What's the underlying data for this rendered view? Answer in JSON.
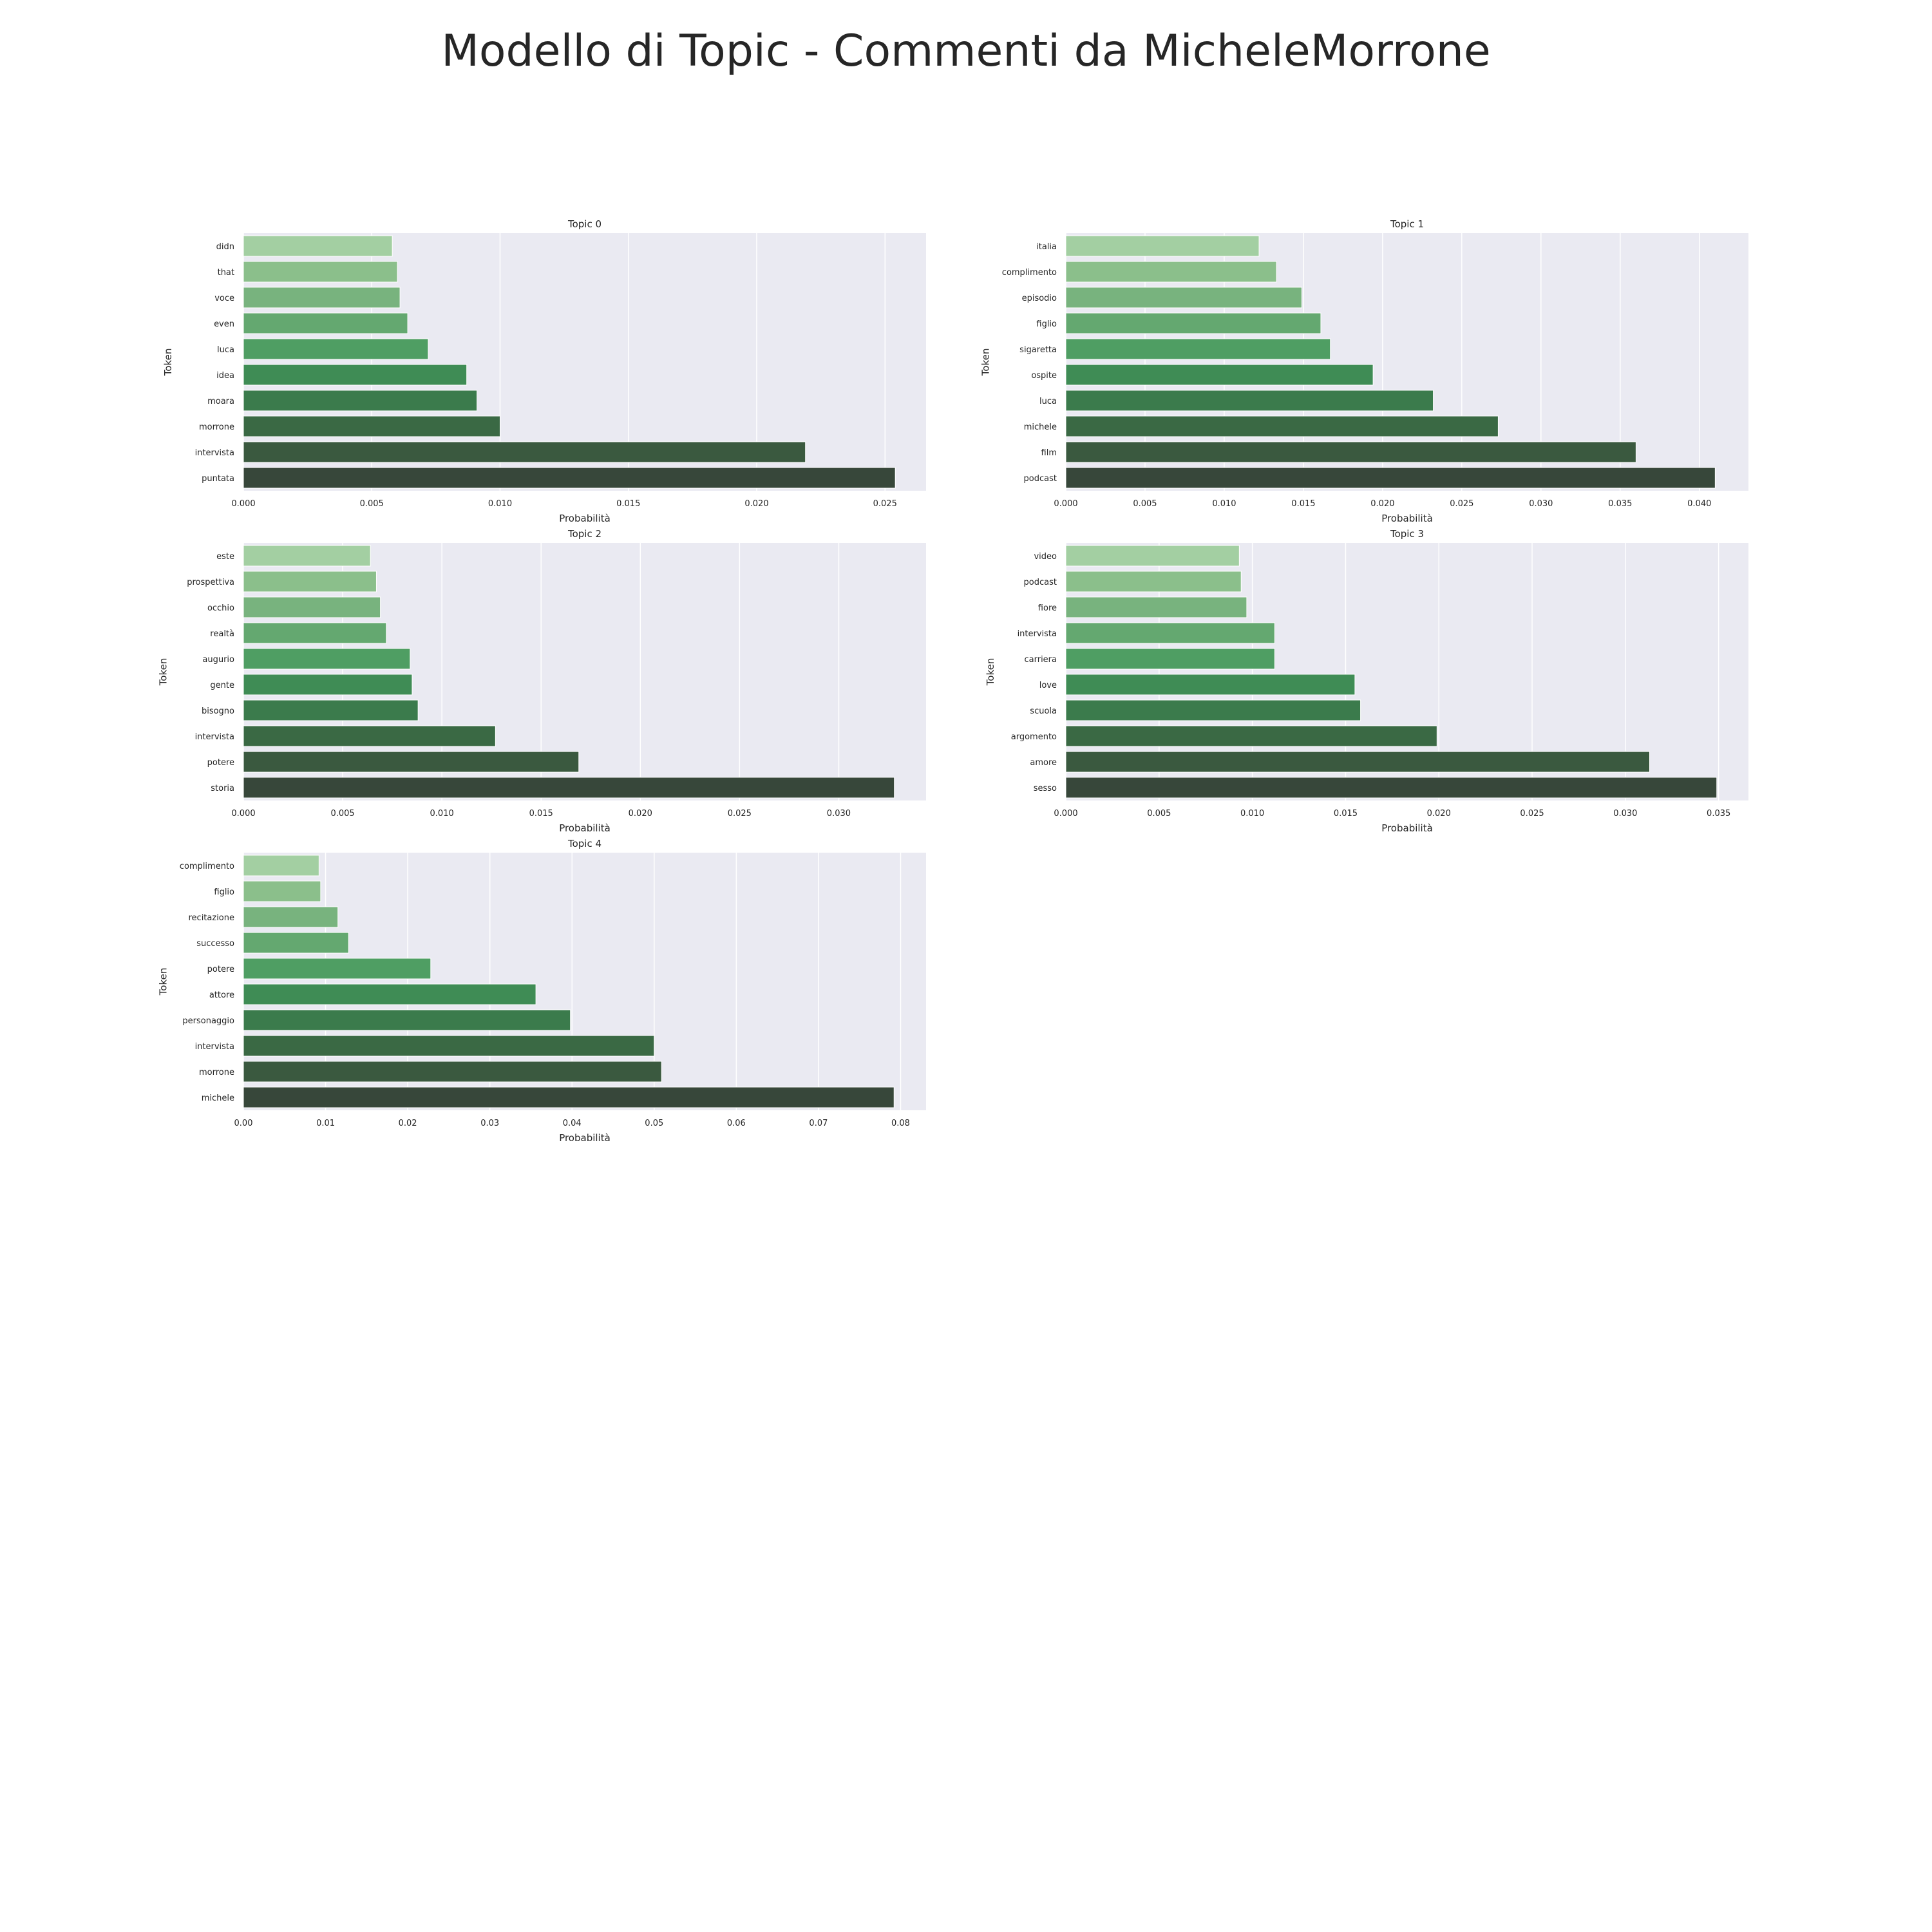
{
  "figure_title": "Modello di Topic - Commenti da MicheleMorrone",
  "colors": {
    "plot_background": "#eaeaf2",
    "grid": "#ffffff",
    "palette": [
      "#a3cfa2",
      "#8bbf8b",
      "#78b37e",
      "#64a870",
      "#4f9e63",
      "#3f8c55",
      "#3b7b4c",
      "#3a6944",
      "#3a593f",
      "#37473a"
    ]
  },
  "chart_data": [
    {
      "type": "bar",
      "orientation": "horizontal",
      "title": "Topic 0",
      "xlabel": "Probabilità",
      "ylabel": "Token",
      "categories": [
        "didn",
        "that",
        "voce",
        "even",
        "luca",
        "idea",
        "moara",
        "morrone",
        "intervista",
        "puntata"
      ],
      "values": [
        0.0058,
        0.006,
        0.0061,
        0.0064,
        0.0072,
        0.0087,
        0.0091,
        0.01,
        0.0219,
        0.0254
      ],
      "xlim": [
        0,
        0.0266
      ],
      "xticks": [
        "0.000",
        "0.005",
        "0.010",
        "0.015",
        "0.020",
        "0.025"
      ],
      "grid": true
    },
    {
      "type": "bar",
      "orientation": "horizontal",
      "title": "Topic 1",
      "xlabel": "Probabilità",
      "ylabel": "Token",
      "categories": [
        "italia",
        "complimento",
        "episodio",
        "figlio",
        "sigaretta",
        "ospite",
        "luca",
        "michele",
        "film",
        "podcast"
      ],
      "values": [
        0.0122,
        0.0133,
        0.0149,
        0.0161,
        0.0167,
        0.0194,
        0.0232,
        0.0273,
        0.036,
        0.041
      ],
      "xlim": [
        0,
        0.0431
      ],
      "xticks": [
        "0.000",
        "0.005",
        "0.010",
        "0.015",
        "0.020",
        "0.025",
        "0.030",
        "0.035",
        "0.040"
      ],
      "grid": true
    },
    {
      "type": "bar",
      "orientation": "horizontal",
      "title": "Topic 2",
      "xlabel": "Probabilità",
      "ylabel": "Token",
      "categories": [
        "este",
        "prospettiva",
        "occhio",
        "realtà",
        "augurio",
        "gente",
        "bisogno",
        "intervista",
        "potere",
        "storia"
      ],
      "values": [
        0.0064,
        0.0067,
        0.0069,
        0.0072,
        0.0084,
        0.0085,
        0.0088,
        0.0127,
        0.0169,
        0.0328
      ],
      "xlim": [
        0,
        0.0344
      ],
      "xticks": [
        "0.000",
        "0.005",
        "0.010",
        "0.015",
        "0.020",
        "0.025",
        "0.030"
      ],
      "grid": true
    },
    {
      "type": "bar",
      "orientation": "horizontal",
      "title": "Topic 3",
      "xlabel": "Probabilità",
      "ylabel": "Token",
      "categories": [
        "video",
        "podcast",
        "fiore",
        "intervista",
        "carriera",
        "love",
        "scuola",
        "argomento",
        "amore",
        "sesso"
      ],
      "values": [
        0.0093,
        0.0094,
        0.0097,
        0.0112,
        0.0112,
        0.0155,
        0.0158,
        0.0199,
        0.0313,
        0.0349
      ],
      "xlim": [
        0,
        0.0366
      ],
      "xticks": [
        "0.000",
        "0.005",
        "0.010",
        "0.015",
        "0.020",
        "0.025",
        "0.030",
        "0.035"
      ],
      "grid": true
    },
    {
      "type": "bar",
      "orientation": "horizontal",
      "title": "Topic 4",
      "xlabel": "Probabilità",
      "ylabel": "Token",
      "categories": [
        "complimento",
        "figlio",
        "recitazione",
        "successo",
        "potere",
        "attore",
        "personaggio",
        "intervista",
        "morrone",
        "michele"
      ],
      "values": [
        0.0092,
        0.0094,
        0.0115,
        0.0128,
        0.0228,
        0.0356,
        0.0398,
        0.05,
        0.0509,
        0.0792
      ],
      "xlim": [
        0,
        0.0831
      ],
      "xticks": [
        "0.00",
        "0.01",
        "0.02",
        "0.03",
        "0.04",
        "0.05",
        "0.06",
        "0.07",
        "0.08"
      ],
      "grid": true
    }
  ]
}
